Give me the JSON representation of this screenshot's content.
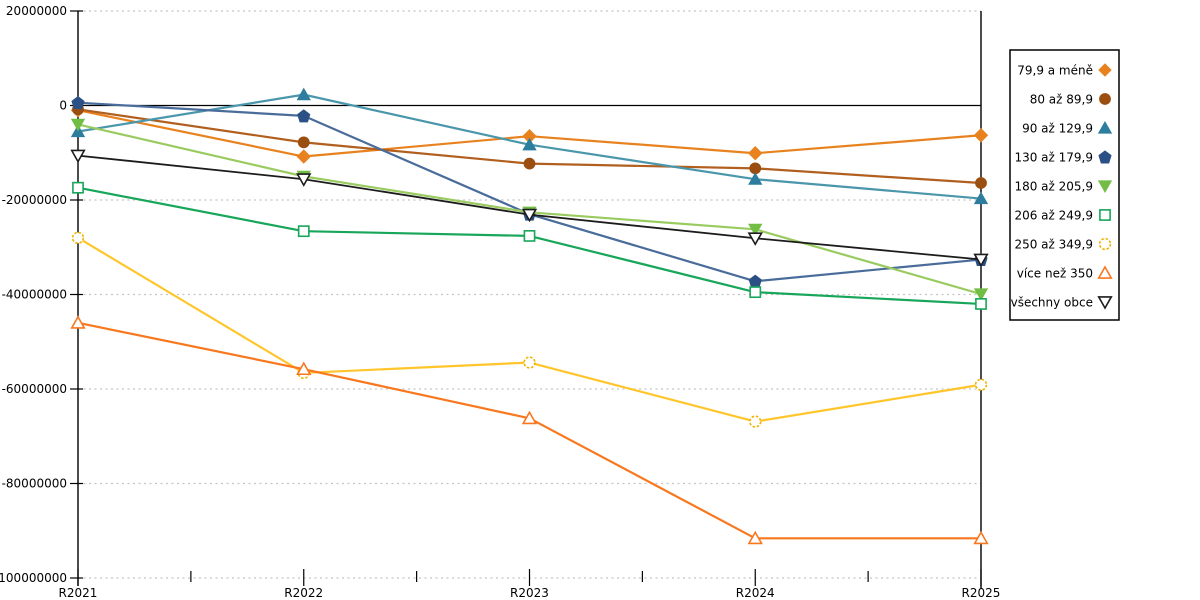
{
  "chart_data": {
    "type": "line",
    "title": "",
    "xlabel": "",
    "ylabel": "",
    "x_labels": [
      "R2021",
      "R2022",
      "R2023",
      "R2024",
      "R2025"
    ],
    "ylim": [
      -100000000,
      20000000
    ],
    "yticks": [
      20000000,
      0,
      -20000000,
      -40000000,
      -60000000,
      -80000000,
      -100000000
    ],
    "grid": "horizontal-dotted",
    "gridline_color": "#c4c4c4",
    "axis_color": "#000000",
    "zero_line": "solid-black",
    "legend_position": "right-outside",
    "legend_border_color": "#000000",
    "series": [
      {
        "name": "79,9 a méně",
        "marker": "diamond",
        "filled": true,
        "line_color": "#e8821e",
        "marker_color": "#e8821e",
        "values": [
          -1000000,
          -10800000,
          -6500000,
          -10100000,
          -6300000
        ]
      },
      {
        "name": "80 až 89,9",
        "marker": "circle",
        "filled": true,
        "line_color": "#b15f1f",
        "marker_color": "#9a4e10",
        "values": [
          -800000,
          -7800000,
          -12300000,
          -13300000,
          -16400000
        ]
      },
      {
        "name": "90 až 129,9",
        "marker": "triangle-up",
        "filled": true,
        "line_color": "#4a96ab",
        "marker_color": "#2c7d9e",
        "values": [
          -5500000,
          2300000,
          -8300000,
          -15600000,
          -19700000
        ]
      },
      {
        "name": "130 až 179,9",
        "marker": "pentagon",
        "filled": true,
        "line_color": "#4a6c9b",
        "marker_color": "#2b5085",
        "values": [
          600000,
          -2200000,
          -23000000,
          -37200000,
          -32600000
        ]
      },
      {
        "name": "180 až 205,9",
        "marker": "triangle-down",
        "filled": true,
        "line_color": "#9acb60",
        "marker_color": "#72be44",
        "values": [
          -4000000,
          -15000000,
          -22600000,
          -26200000,
          -39900000
        ]
      },
      {
        "name": "206 až 249,9",
        "marker": "square",
        "filled": false,
        "line_color": "#17a65a",
        "marker_color": "#17a65a",
        "values": [
          -17400000,
          -26600000,
          -27600000,
          -39500000,
          -42000000
        ]
      },
      {
        "name": "250 až 349,9",
        "marker": "circle",
        "filled": false,
        "dashed_marker": true,
        "line_color": "#ffc52a",
        "marker_color": "#f0b400",
        "values": [
          -28000000,
          -56600000,
          -54400000,
          -66900000,
          -59100000
        ]
      },
      {
        "name": "více než 350",
        "marker": "triangle-up",
        "filled": false,
        "line_color": "#f8781f",
        "marker_color": "#f8781f",
        "values": [
          -46000000,
          -55800000,
          -66200000,
          -91600000,
          -91600000
        ]
      },
      {
        "name": "všechny obce",
        "marker": "triangle-down",
        "filled": false,
        "line_color": "#1c1c1c",
        "marker_color": "#1c1c1c",
        "values": [
          -10600000,
          -15600000,
          -23100000,
          -28100000,
          -32600000
        ]
      }
    ]
  }
}
